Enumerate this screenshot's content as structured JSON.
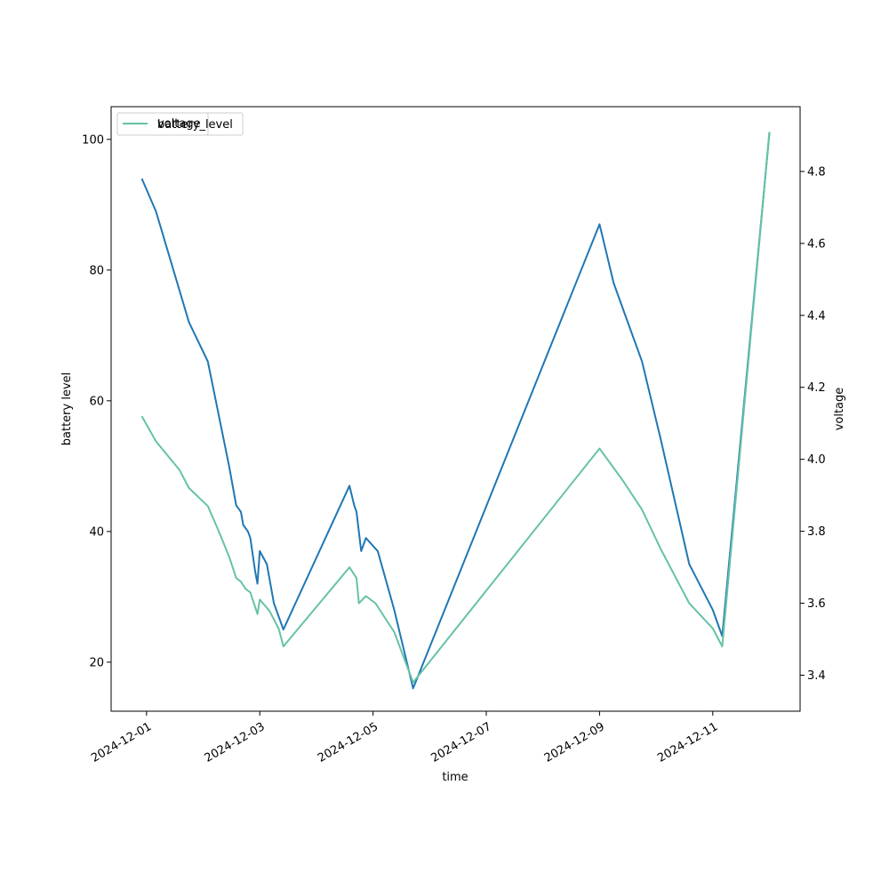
{
  "chart_data": {
    "type": "line",
    "xlabel": "time",
    "ylabel_left": "battery level",
    "ylabel_right": "voltage",
    "x_ticks": [
      "2024-12-01",
      "2024-12-03",
      "2024-12-05",
      "2024-12-07",
      "2024-12-09",
      "2024-12-11"
    ],
    "y_left_ticks": [
      20,
      40,
      60,
      80,
      100
    ],
    "y_right_ticks": [
      3.4,
      3.6,
      3.8,
      4.0,
      4.2,
      4.4,
      4.6,
      4.8
    ],
    "x_range": [
      "2024-11-30T09:00",
      "2024-12-12T13:00"
    ],
    "y_left_range": [
      12.5,
      105
    ],
    "y_right_range": [
      3.3,
      4.98
    ],
    "legend": {
      "placement": "upper-left",
      "entries": [
        "voltage",
        "battery_level"
      ]
    },
    "series": [
      {
        "name": "battery_level",
        "axis": "left",
        "color": "#1f77b4",
        "points": [
          [
            "2024-11-30T22:00",
            94
          ],
          [
            "2024-12-01T04:00",
            89
          ],
          [
            "2024-12-01T18:00",
            72
          ],
          [
            "2024-12-01T22:00",
            69
          ],
          [
            "2024-12-02T02:00",
            66
          ],
          [
            "2024-12-02T11:00",
            50
          ],
          [
            "2024-12-02T14:00",
            44
          ],
          [
            "2024-12-02T16:00",
            43
          ],
          [
            "2024-12-02T17:00",
            41
          ],
          [
            "2024-12-02T19:00",
            40
          ],
          [
            "2024-12-02T20:00",
            39
          ],
          [
            "2024-12-02T22:00",
            34
          ],
          [
            "2024-12-02T23:00",
            32
          ],
          [
            "2024-12-03T00:00",
            37
          ],
          [
            "2024-12-03T03:00",
            35
          ],
          [
            "2024-12-03T06:00",
            29
          ],
          [
            "2024-12-03T10:00",
            25
          ],
          [
            "2024-12-04T14:00",
            47
          ],
          [
            "2024-12-04T16:00",
            44
          ],
          [
            "2024-12-04T17:00",
            43
          ],
          [
            "2024-12-04T19:00",
            37
          ],
          [
            "2024-12-04T21:00",
            39
          ],
          [
            "2024-12-05T02:00",
            37
          ],
          [
            "2024-12-05T09:00",
            28
          ],
          [
            "2024-12-05T17:00",
            16
          ],
          [
            "2024-12-09T00:00",
            87
          ],
          [
            "2024-12-09T06:00",
            78
          ],
          [
            "2024-12-09T10:00",
            74
          ],
          [
            "2024-12-09T18:00",
            66
          ],
          [
            "2024-12-10T02:00",
            54
          ],
          [
            "2024-12-10T14:00",
            35
          ],
          [
            "2024-12-11T00:00",
            28
          ],
          [
            "2024-12-11T04:00",
            24
          ],
          [
            "2024-12-12T00:00",
            101
          ]
        ]
      },
      {
        "name": "voltage",
        "axis": "right",
        "color": "#66c2a5",
        "points": [
          [
            "2024-11-30T22:00",
            4.12
          ],
          [
            "2024-12-01T04:00",
            4.05
          ],
          [
            "2024-12-01T14:00",
            3.97
          ],
          [
            "2024-12-01T18:00",
            3.92
          ],
          [
            "2024-12-02T02:00",
            3.87
          ],
          [
            "2024-12-02T06:00",
            3.81
          ],
          [
            "2024-12-02T11:00",
            3.73
          ],
          [
            "2024-12-02T14:00",
            3.67
          ],
          [
            "2024-12-02T16:00",
            3.66
          ],
          [
            "2024-12-02T18:00",
            3.64
          ],
          [
            "2024-12-02T20:00",
            3.63
          ],
          [
            "2024-12-02T23:00",
            3.57
          ],
          [
            "2024-12-03T00:00",
            3.61
          ],
          [
            "2024-12-03T04:00",
            3.58
          ],
          [
            "2024-12-03T08:00",
            3.53
          ],
          [
            "2024-12-03T10:00",
            3.48
          ],
          [
            "2024-12-04T14:00",
            3.7
          ],
          [
            "2024-12-04T16:00",
            3.68
          ],
          [
            "2024-12-04T17:00",
            3.67
          ],
          [
            "2024-12-04T18:00",
            3.6
          ],
          [
            "2024-12-04T21:00",
            3.62
          ],
          [
            "2024-12-05T01:00",
            3.6
          ],
          [
            "2024-12-05T09:00",
            3.52
          ],
          [
            "2024-12-05T17:00",
            3.38
          ],
          [
            "2024-12-09T00:00",
            4.03
          ],
          [
            "2024-12-09T10:00",
            3.94
          ],
          [
            "2024-12-09T18:00",
            3.86
          ],
          [
            "2024-12-10T02:00",
            3.75
          ],
          [
            "2024-12-10T14:00",
            3.6
          ],
          [
            "2024-12-11T00:00",
            3.53
          ],
          [
            "2024-12-11T04:00",
            3.48
          ],
          [
            "2024-12-12T00:00",
            4.91
          ]
        ]
      }
    ]
  }
}
